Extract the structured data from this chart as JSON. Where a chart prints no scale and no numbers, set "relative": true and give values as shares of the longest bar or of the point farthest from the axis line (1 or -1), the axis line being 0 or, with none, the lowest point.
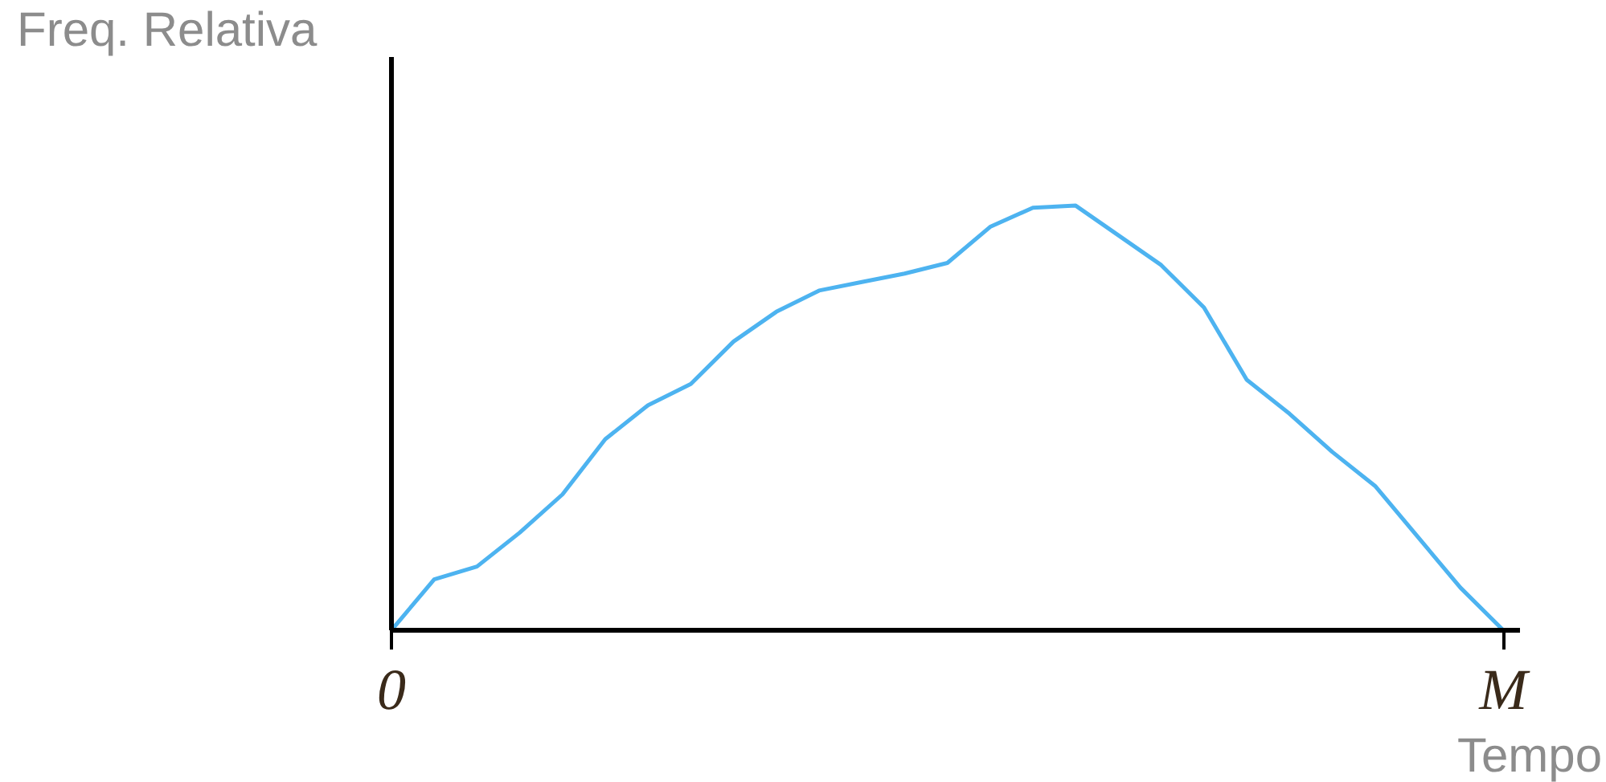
{
  "chart_data": {
    "type": "line",
    "relative": true,
    "xlabel": "Tempo",
    "ylabel": "Freq. Relativa",
    "categories": [
      "0",
      null,
      null,
      null,
      null,
      null,
      null,
      null,
      null,
      null,
      null,
      null,
      null,
      null,
      null,
      null,
      null,
      null,
      null,
      null,
      null,
      null,
      null,
      null,
      null,
      null,
      "M"
    ],
    "series": [
      {
        "color": "#4db3f0",
        "values": [
          0,
          0.12,
          0.15,
          0.23,
          0.32,
          0.45,
          0.53,
          0.58,
          0.68,
          0.75,
          0.8,
          0.82,
          0.84,
          0.865,
          0.95,
          0.995,
          1.0,
          0.93,
          0.86,
          0.76,
          0.59,
          0.51,
          0.42,
          0.34,
          0.22,
          0.1,
          0
        ]
      }
    ]
  }
}
